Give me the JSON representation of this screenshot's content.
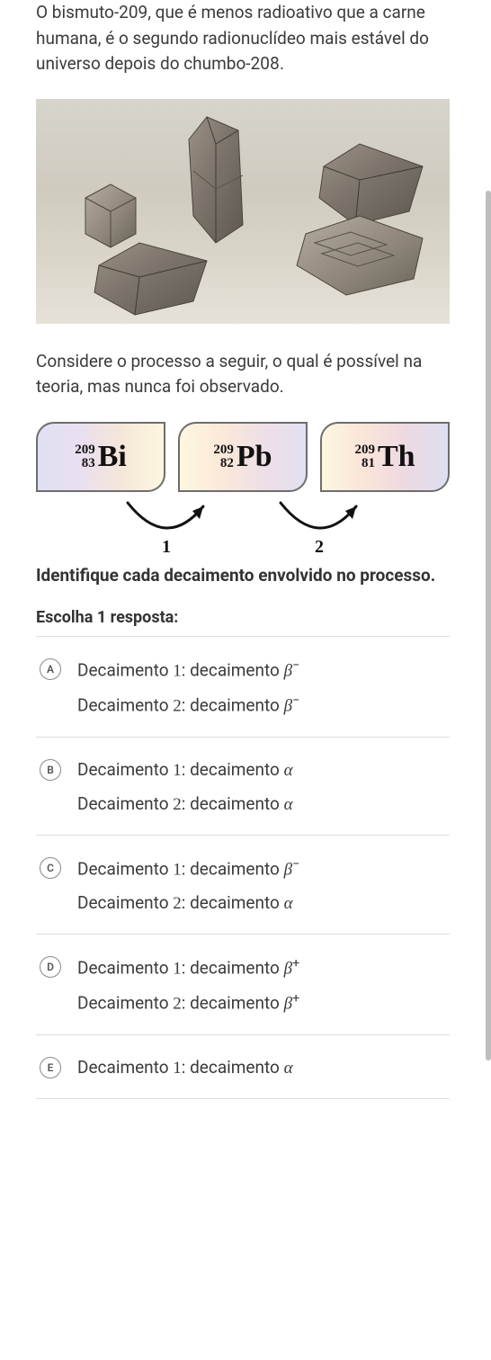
{
  "intro": {
    "before": "O bismuto-",
    "n1": "209",
    "mid": ", que é menos radioativo que a carne humana, é o segundo radionuclídeo mais estável do universo depois do chumbo-",
    "n2": "208",
    "after": "."
  },
  "image_caption_alt": "bismuth crystals",
  "consider": "Considere o processo a seguir, o qual é possível na teoria, mas nunca foi observado.",
  "nuclides": [
    {
      "mass": "209",
      "z": "83",
      "sym": "Bi",
      "gradient": "g1"
    },
    {
      "mass": "209",
      "z": "82",
      "sym": "Pb",
      "gradient": "g2"
    },
    {
      "mass": "209",
      "z": "81",
      "sym": "Th",
      "gradient": "g3"
    }
  ],
  "decay_labels": [
    "1",
    "2"
  ],
  "question": "Identifique cada decaimento envolvido no processo.",
  "choose_one": "Escolha 1 resposta:",
  "line_template": {
    "decay_word": "Decaimento",
    "sep": ": decaimento"
  },
  "options": [
    {
      "key": "A",
      "lines": [
        {
          "n": "1",
          "sym": "β",
          "sup": "−"
        },
        {
          "n": "2",
          "sym": "β",
          "sup": "−"
        }
      ]
    },
    {
      "key": "B",
      "lines": [
        {
          "n": "1",
          "sym": "α",
          "sup": ""
        },
        {
          "n": "2",
          "sym": "α",
          "sup": ""
        }
      ]
    },
    {
      "key": "C",
      "lines": [
        {
          "n": "1",
          "sym": "β",
          "sup": "−"
        },
        {
          "n": "2",
          "sym": "α",
          "sup": ""
        }
      ]
    },
    {
      "key": "D",
      "lines": [
        {
          "n": "1",
          "sym": "β",
          "sup": "+"
        },
        {
          "n": "2",
          "sym": "β",
          "sup": "+"
        }
      ]
    },
    {
      "key": "E",
      "lines": [
        {
          "n": "1",
          "sym": "α",
          "sup": ""
        }
      ]
    }
  ],
  "colors": {
    "text": "#3b3b3b",
    "heading": "#333333",
    "border": "#dddddd",
    "radio_border": "#888888",
    "card_border": "#6d6d6d",
    "scroll_thumb": "#bdbdbd"
  },
  "scrollbar": {
    "top_pct": 14,
    "height_pct": 64
  }
}
